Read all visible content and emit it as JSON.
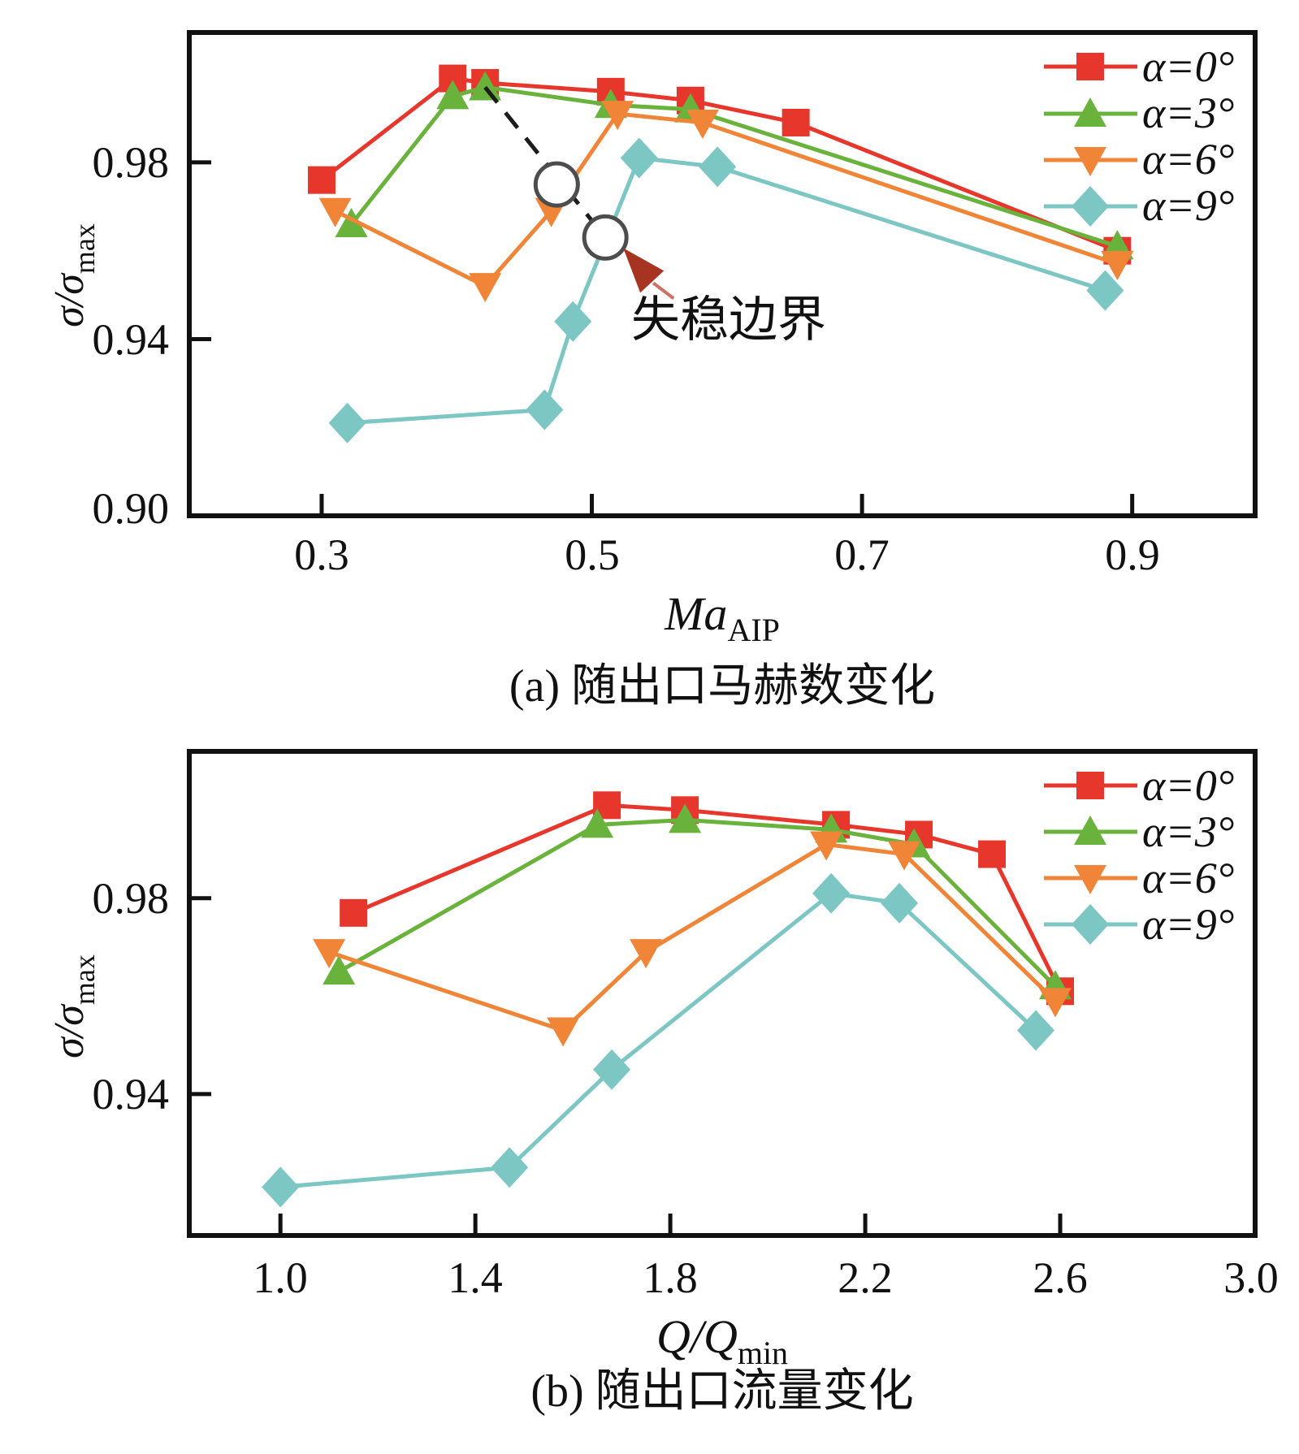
{
  "figure": {
    "background": "#ffffff",
    "axis_color": "#111111",
    "dash_color": "#1c1c1c",
    "circle_stroke": "#4d4d4d",
    "arrow_tail_color": "#cd7164"
  },
  "chart_data": [
    {
      "id": "a",
      "type": "line",
      "caption": "(a) 随出口马赫数变化",
      "xlabel": {
        "main": "Ma",
        "sub": "AIP"
      },
      "ylabel": {
        "main": "σ/σ",
        "sub": "max"
      },
      "xlim": [
        0.202,
        0.991
      ],
      "ylim": [
        0.9,
        1.0094
      ],
      "grid": false,
      "legend_position": "top-right",
      "xticks": {
        "values": [
          0.3,
          0.5,
          0.7,
          0.9
        ],
        "labels": [
          "0.3",
          "0.5",
          "0.7",
          "0.9"
        ]
      },
      "yticks": {
        "values": [
          0.98,
          0.94
        ],
        "labels": [
          "0.98",
          "0.94",
          "0.90"
        ],
        "label_values": [
          0.98,
          0.94,
          0.9
        ]
      },
      "series": [
        {
          "name": "α=0°",
          "color": "#e7372c",
          "marker": "square",
          "points": [
            [
              0.3,
              0.976
            ],
            [
              0.397,
              0.999
            ],
            [
              0.421,
              0.998
            ],
            [
              0.514,
              0.996
            ],
            [
              0.573,
              0.994
            ],
            [
              0.651,
              0.989
            ],
            [
              0.889,
              0.96
            ]
          ]
        },
        {
          "name": "α=3°",
          "color": "#69b23c",
          "marker": "triangle-up",
          "points": [
            [
              0.322,
              0.966
            ],
            [
              0.397,
              0.995
            ],
            [
              0.421,
              0.997
            ],
            [
              0.514,
              0.993
            ],
            [
              0.573,
              0.992
            ],
            [
              0.889,
              0.961
            ]
          ]
        },
        {
          "name": "α=6°",
          "color": "#f08437",
          "marker": "triangle-down",
          "points": [
            [
              0.31,
              0.969
            ],
            [
              0.421,
              0.952
            ],
            [
              0.47,
              0.969
            ],
            [
              0.519,
              0.991
            ],
            [
              0.582,
              0.989
            ],
            [
              0.889,
              0.957
            ]
          ]
        },
        {
          "name": "α=9°",
          "color": "#7cc6c3",
          "marker": "diamond",
          "points": [
            [
              0.319,
              0.921
            ],
            [
              0.465,
              0.924
            ],
            [
              0.486,
              0.944
            ],
            [
              0.535,
              0.981
            ],
            [
              0.593,
              0.979
            ],
            [
              0.88,
              0.951
            ]
          ]
        }
      ],
      "annotation": {
        "label": "失稳边界",
        "dash_from": [
          0.421,
          0.997
        ],
        "boundary_circles": [
          [
            0.474,
            0.975
          ],
          [
            0.51,
            0.963
          ]
        ],
        "arrow_color": "#a63420"
      }
    },
    {
      "id": "b",
      "type": "line",
      "caption": "(b) 随出口流量变化",
      "xlabel": {
        "main": "Q/Q",
        "sub": "min"
      },
      "ylabel": {
        "main": "σ/σ",
        "sub": "max"
      },
      "xlim": [
        0.813,
        3.0
      ],
      "ylim": [
        0.9111,
        1.01
      ],
      "grid": false,
      "legend_position": "top-right",
      "xticks": {
        "values": [
          1.0,
          1.4,
          1.8,
          2.2,
          2.6,
          3.0
        ],
        "labels": [
          "1.0",
          "1.4",
          "1.8",
          "2.2",
          "2.6",
          "3.0"
        ]
      },
      "yticks": {
        "values": [
          0.98,
          0.94
        ],
        "labels": [
          "0.98",
          "0.94"
        ],
        "label_values": [
          0.98,
          0.94
        ]
      },
      "series": [
        {
          "name": "α=0°",
          "color": "#e7372c",
          "marker": "square",
          "points": [
            [
              1.15,
              0.977
            ],
            [
              1.67,
              0.999
            ],
            [
              1.83,
              0.998
            ],
            [
              2.14,
              0.995
            ],
            [
              2.31,
              0.993
            ],
            [
              2.46,
              0.989
            ],
            [
              2.6,
              0.961
            ]
          ]
        },
        {
          "name": "α=3°",
          "color": "#69b23c",
          "marker": "triangle-up",
          "points": [
            [
              1.12,
              0.965
            ],
            [
              1.65,
              0.995
            ],
            [
              1.83,
              0.996
            ],
            [
              2.13,
              0.994
            ],
            [
              2.3,
              0.991
            ],
            [
              2.59,
              0.962
            ]
          ]
        },
        {
          "name": "α=6°",
          "color": "#f08437",
          "marker": "triangle-down",
          "points": [
            [
              1.1,
              0.969
            ],
            [
              1.58,
              0.953
            ],
            [
              1.75,
              0.969
            ],
            [
              2.12,
              0.991
            ],
            [
              2.28,
              0.989
            ],
            [
              2.59,
              0.959
            ]
          ]
        },
        {
          "name": "α=9°",
          "color": "#7cc6c3",
          "marker": "diamond",
          "points": [
            [
              1.0,
              0.921
            ],
            [
              1.47,
              0.925
            ],
            [
              1.68,
              0.945
            ],
            [
              2.13,
              0.981
            ],
            [
              2.27,
              0.979
            ],
            [
              2.55,
              0.953
            ]
          ]
        }
      ]
    }
  ]
}
